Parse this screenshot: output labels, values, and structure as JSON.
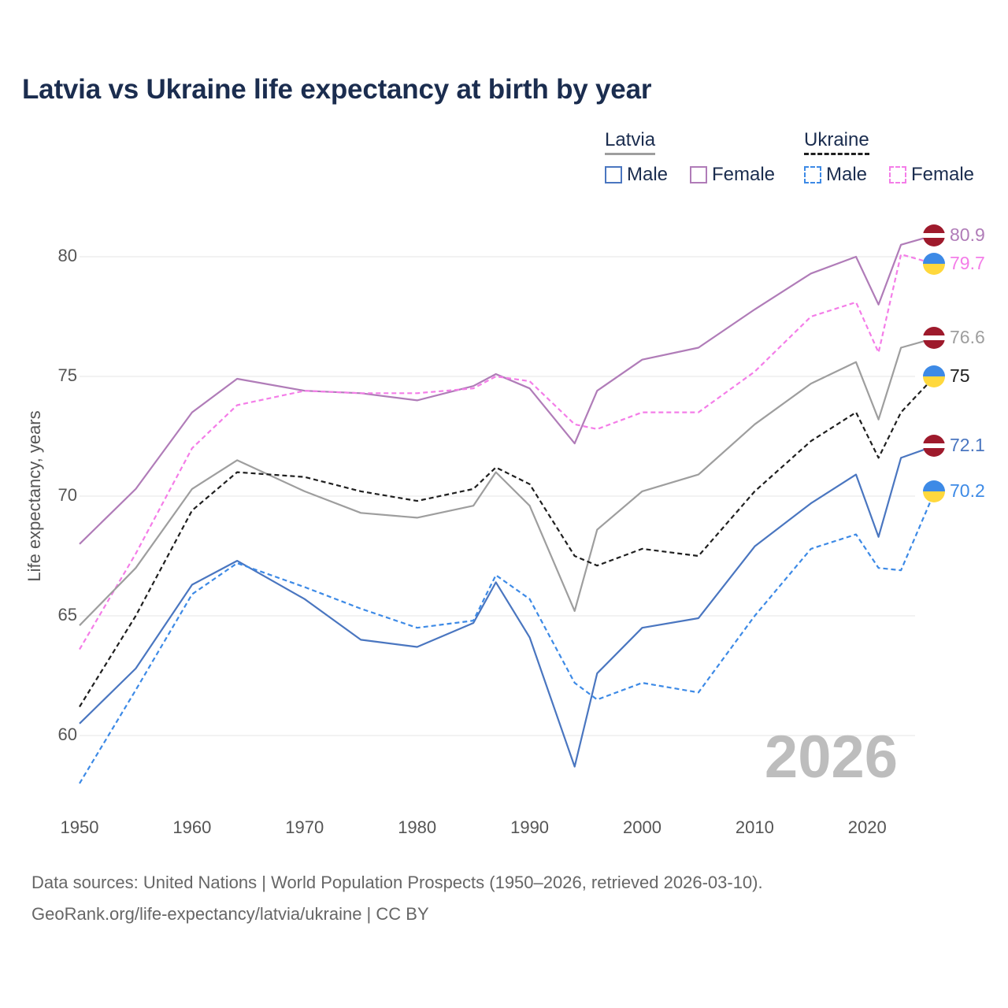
{
  "title": "Latvia vs Ukraine life expectancy at birth by year",
  "legend": {
    "latvia": {
      "name": "Latvia",
      "male": "Male",
      "female": "Female"
    },
    "ukraine": {
      "name": "Ukraine",
      "male": "Male",
      "female": "Female"
    }
  },
  "year_mark": "2026",
  "footer": {
    "line1": "Data sources: United Nations | World Population Prospects (1950–2026, retrieved 2026-03-10).",
    "line2": "GeoRank.org/life-expectancy/latvia/ukraine | CC BY"
  },
  "colors": {
    "latvia_total": "#9e9e9e",
    "latvia_male": "#4a76c0",
    "latvia_female": "#b07cb8",
    "ukraine_total": "#1f1f1f",
    "ukraine_male": "#3d8ae6",
    "ukraine_female": "#f47de8",
    "latvia_flag_red": "#9e1a2c",
    "ukraine_flag_blue": "#3d8ae6",
    "ukraine_flag_yellow": "#ffd83d"
  },
  "chart_data": {
    "type": "line",
    "title": "Latvia vs Ukraine life expectancy at birth by year",
    "xlabel": "",
    "ylabel": "Life expectancy, years",
    "xlim": [
      1950,
      2026
    ],
    "ylim": [
      57.5,
      82.5
    ],
    "x_ticks": [
      1950,
      1960,
      1970,
      1980,
      1990,
      2000,
      2010,
      2020
    ],
    "y_ticks": [
      60,
      65,
      70,
      75,
      80
    ],
    "grid": true,
    "years": [
      1950,
      1955,
      1960,
      1964,
      1970,
      1975,
      1980,
      1985,
      1987,
      1990,
      1994,
      1996,
      2000,
      2005,
      2010,
      2015,
      2019,
      2021,
      2023,
      2026
    ],
    "series": [
      {
        "name": "Latvia Female",
        "country": "Latvia",
        "sex": "Female",
        "style": "solid",
        "color_key": "latvia_female",
        "end_label": "80.9",
        "values": [
          68.0,
          70.3,
          73.5,
          74.9,
          74.4,
          74.3,
          74.0,
          74.6,
          75.1,
          74.5,
          72.2,
          74.4,
          75.7,
          76.2,
          77.8,
          79.3,
          80.0,
          78.0,
          80.5,
          80.9
        ]
      },
      {
        "name": "Ukraine Female",
        "country": "Ukraine",
        "sex": "Female",
        "style": "dashed",
        "color_key": "ukraine_female",
        "end_label": "79.7",
        "values": [
          63.6,
          67.6,
          72.0,
          73.8,
          74.4,
          74.3,
          74.3,
          74.5,
          75.0,
          74.8,
          73.0,
          72.8,
          73.5,
          73.5,
          75.2,
          77.5,
          78.1,
          76.0,
          80.1,
          79.7
        ]
      },
      {
        "name": "Latvia Total",
        "country": "Latvia",
        "sex": "Both",
        "style": "solid",
        "color_key": "latvia_total",
        "end_label": "76.6",
        "values": [
          64.6,
          67.0,
          70.3,
          71.5,
          70.2,
          69.3,
          69.1,
          69.6,
          71.0,
          69.6,
          65.2,
          68.6,
          70.2,
          70.9,
          73.0,
          74.7,
          75.6,
          73.2,
          76.2,
          76.6
        ]
      },
      {
        "name": "Ukraine Total",
        "country": "Ukraine",
        "sex": "Both",
        "style": "dashed",
        "color_key": "ukraine_total",
        "end_label": "75",
        "values": [
          61.2,
          65.0,
          69.4,
          71.0,
          70.8,
          70.2,
          69.8,
          70.3,
          71.2,
          70.5,
          67.5,
          67.1,
          67.8,
          67.5,
          70.2,
          72.3,
          73.5,
          71.6,
          73.5,
          75.0
        ]
      },
      {
        "name": "Latvia Male",
        "country": "Latvia",
        "sex": "Male",
        "style": "solid",
        "color_key": "latvia_male",
        "end_label": "72.1",
        "values": [
          60.5,
          62.8,
          66.3,
          67.3,
          65.7,
          64.0,
          63.7,
          64.7,
          66.4,
          64.1,
          58.7,
          62.6,
          64.5,
          64.9,
          67.9,
          69.7,
          70.9,
          68.3,
          71.6,
          72.1
        ]
      },
      {
        "name": "Ukraine Male",
        "country": "Ukraine",
        "sex": "Male",
        "style": "dashed",
        "color_key": "ukraine_male",
        "end_label": "70.2",
        "values": [
          58.0,
          61.9,
          65.9,
          67.2,
          66.2,
          65.3,
          64.5,
          64.8,
          66.7,
          65.7,
          62.2,
          61.5,
          62.2,
          61.8,
          65.0,
          67.8,
          68.4,
          67.0,
          66.9,
          70.2
        ]
      }
    ]
  }
}
